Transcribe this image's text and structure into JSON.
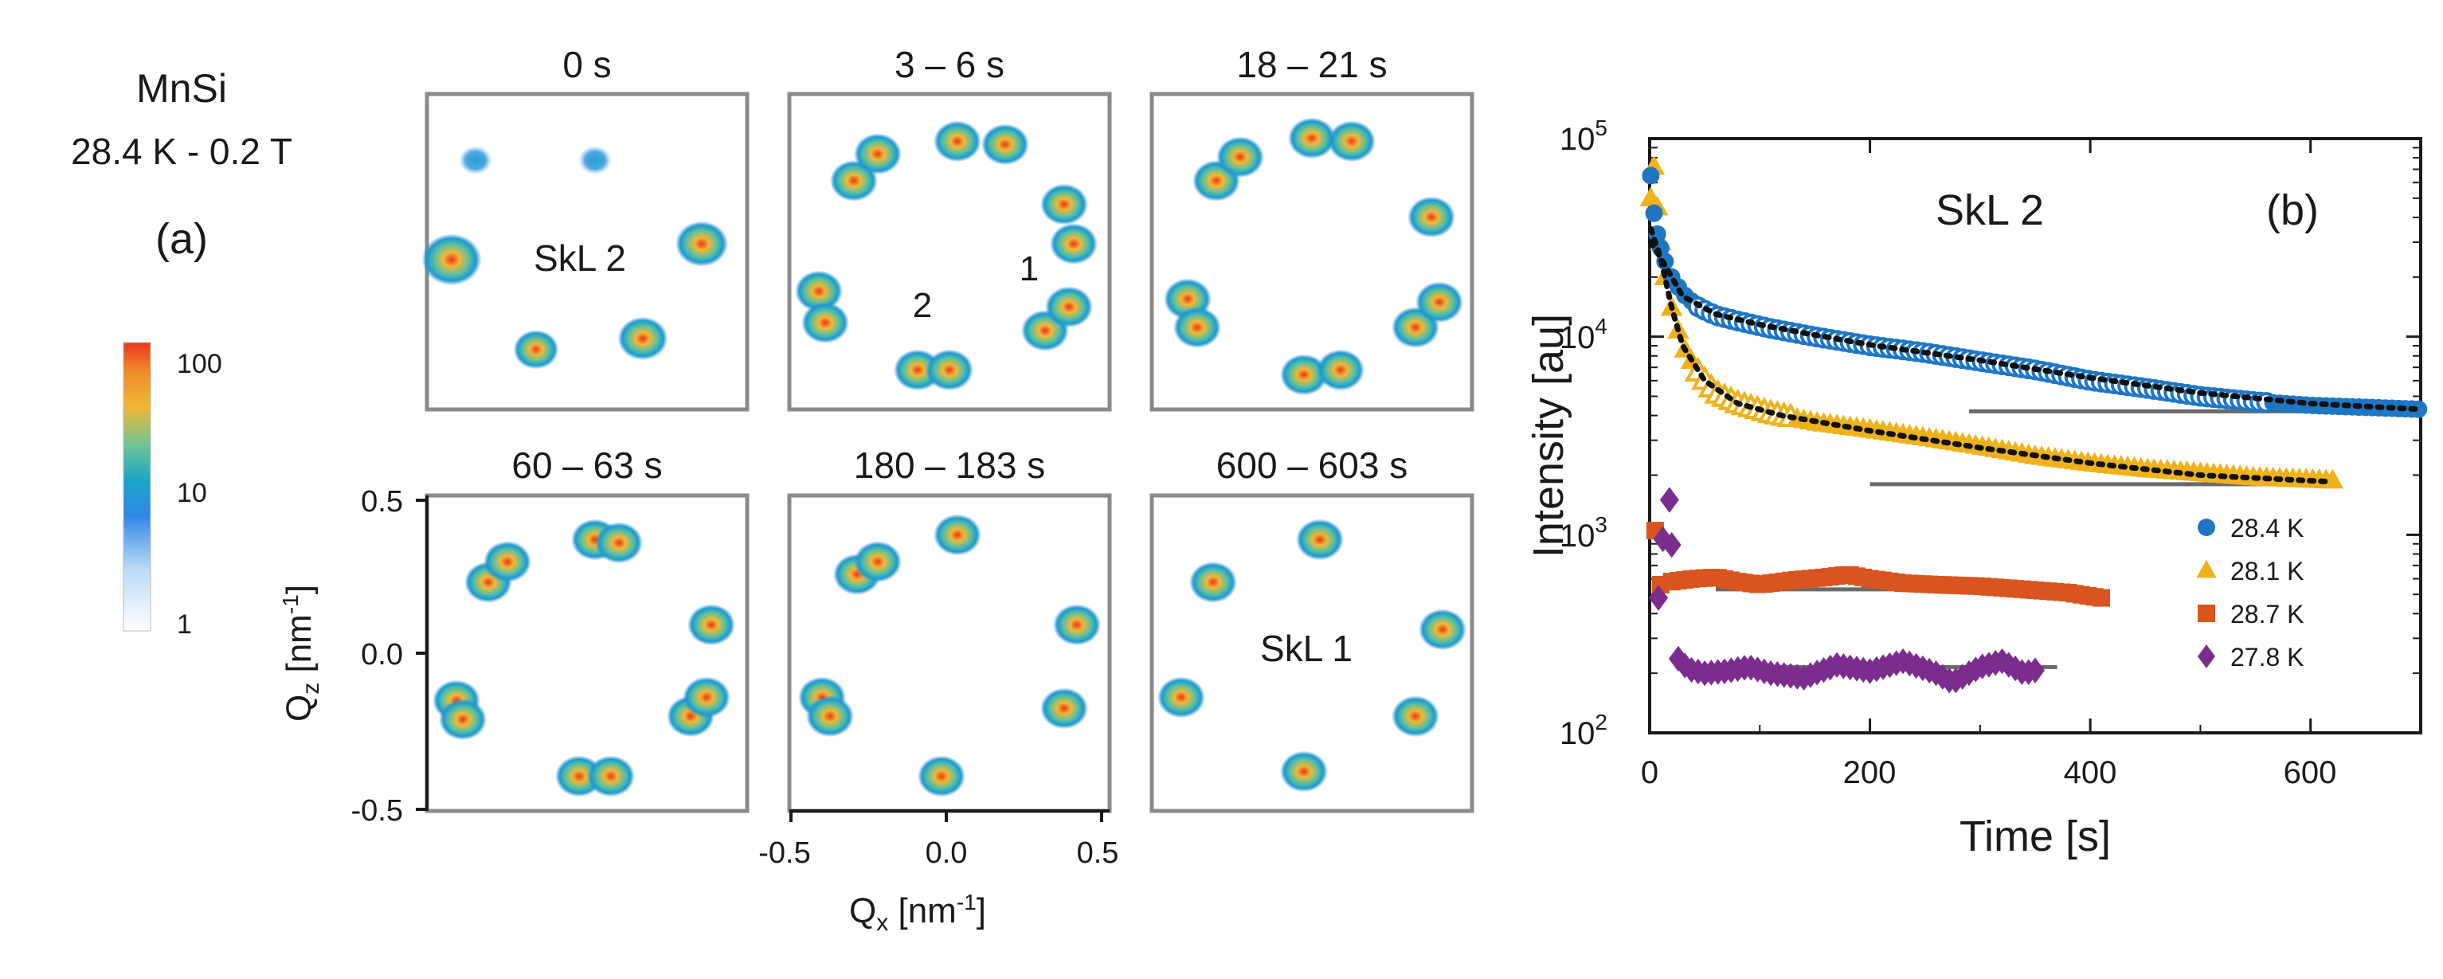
{
  "panel_a": {
    "material": "MnSi",
    "conditions": "28.4 K - 0.2 T",
    "label": "(a)",
    "colorbar": {
      "ticks": [
        "100",
        "10",
        "1"
      ],
      "scale": "log",
      "colors": [
        "#ffffff",
        "#2f86e6",
        "#1aa6c8",
        "#f2b733",
        "#e8371b"
      ]
    },
    "frames": [
      {
        "title": "0 s",
        "annotation": "SkL 2",
        "numbers": []
      },
      {
        "title": "3 – 6 s",
        "annotation": "",
        "numbers": [
          "2",
          "1"
        ]
      },
      {
        "title": "18 – 21 s",
        "annotation": "",
        "numbers": []
      },
      {
        "title": "60 – 63 s",
        "annotation": "",
        "numbers": []
      },
      {
        "title": "180 – 183 s",
        "annotation": "",
        "numbers": []
      },
      {
        "title": "600 – 603 s",
        "annotation": "SkL 1",
        "numbers": []
      }
    ],
    "x_axis": {
      "label_main": "Q",
      "label_sub": "x",
      "label_unit": " [nm",
      "label_sup": "-1",
      "label_end": "]",
      "ticks": [
        "-0.5",
        "0.0",
        "0.5"
      ]
    },
    "y_axis": {
      "label_main": "Q",
      "label_sub": "z",
      "label_unit": " [nm",
      "label_sup": "-1",
      "label_end": "]",
      "ticks": [
        "0.5",
        "0.0",
        "-0.5"
      ]
    }
  },
  "chart_data": {
    "type": "scatter",
    "title": "SkL 2",
    "panel_label": "(b)",
    "xlabel": "Time [s]",
    "ylabel": "Intensity [au]",
    "xlim": [
      0,
      700
    ],
    "ylim": [
      100,
      100000
    ],
    "yscale": "log",
    "x_ticks": [
      "0",
      "200",
      "400",
      "600"
    ],
    "y_ticks": [
      {
        "base": "10",
        "exp": "2"
      },
      {
        "base": "10",
        "exp": "3"
      },
      {
        "base": "10",
        "exp": "4"
      },
      {
        "base": "10",
        "exp": "5"
      }
    ],
    "legend_position": "bottom-right",
    "series": [
      {
        "name": "28.4 K",
        "marker": "circle",
        "color": "#1f77c4",
        "open_marker_start_s": 40,
        "open_marker_end_s": 560,
        "points": [
          [
            1,
            65000
          ],
          [
            4,
            42000
          ],
          [
            7,
            33000
          ],
          [
            10,
            28000
          ],
          [
            14,
            24000
          ],
          [
            20,
            20000
          ],
          [
            30,
            16500
          ],
          [
            45,
            14000
          ],
          [
            60,
            12800
          ],
          [
            80,
            12000
          ],
          [
            110,
            11000
          ],
          [
            150,
            10000
          ],
          [
            200,
            9000
          ],
          [
            250,
            8300
          ],
          [
            300,
            7500
          ],
          [
            350,
            6800
          ],
          [
            400,
            6000
          ],
          [
            450,
            5500
          ],
          [
            500,
            5000
          ],
          [
            550,
            4700
          ],
          [
            600,
            4500
          ],
          [
            650,
            4400
          ],
          [
            700,
            4300
          ]
        ],
        "fit": [
          [
            1,
            30000
          ],
          [
            10,
            25000
          ],
          [
            30,
            16000
          ],
          [
            60,
            13000
          ],
          [
            100,
            11500
          ],
          [
            150,
            10200
          ],
          [
            200,
            9100
          ],
          [
            300,
            7600
          ],
          [
            400,
            6200
          ],
          [
            500,
            5200
          ],
          [
            600,
            4600
          ],
          [
            700,
            4300
          ]
        ],
        "plateau": {
          "value": 4200,
          "x_start": 290,
          "x_end": 700
        }
      },
      {
        "name": "28.1 K",
        "marker": "triangle",
        "color": "#f0b21c",
        "open_marker_start_s": 40,
        "open_marker_end_s": 130,
        "points": [
          [
            1,
            50000
          ],
          [
            4,
            72000
          ],
          [
            7,
            45000
          ],
          [
            10,
            30000
          ],
          [
            14,
            20000
          ],
          [
            20,
            14000
          ],
          [
            30,
            9000
          ],
          [
            45,
            6500
          ],
          [
            60,
            5200
          ],
          [
            80,
            4600
          ],
          [
            110,
            4100
          ],
          [
            150,
            3700
          ],
          [
            200,
            3400
          ],
          [
            250,
            3100
          ],
          [
            300,
            2800
          ],
          [
            350,
            2500
          ],
          [
            400,
            2300
          ],
          [
            450,
            2150
          ],
          [
            500,
            2050
          ],
          [
            550,
            1950
          ],
          [
            600,
            1900
          ],
          [
            620,
            1880
          ]
        ],
        "fit": [
          [
            1,
            35000
          ],
          [
            10,
            25000
          ],
          [
            20,
            14000
          ],
          [
            30,
            9000
          ],
          [
            50,
            6000
          ],
          [
            80,
            4600
          ],
          [
            120,
            4000
          ],
          [
            200,
            3350
          ],
          [
            300,
            2750
          ],
          [
            400,
            2300
          ],
          [
            500,
            2000
          ],
          [
            620,
            1850
          ]
        ],
        "plateau": {
          "value": 1800,
          "x_start": 200,
          "x_end": 620
        }
      },
      {
        "name": "28.7 K",
        "marker": "square",
        "color": "#d9541e",
        "points": [
          [
            5,
            1050
          ],
          [
            10,
            560
          ],
          [
            20,
            580
          ],
          [
            40,
            600
          ],
          [
            60,
            610
          ],
          [
            80,
            580
          ],
          [
            100,
            560
          ],
          [
            130,
            590
          ],
          [
            160,
            610
          ],
          [
            180,
            630
          ],
          [
            200,
            600
          ],
          [
            230,
            570
          ],
          [
            260,
            560
          ],
          [
            300,
            550
          ],
          [
            340,
            530
          ],
          [
            380,
            510
          ],
          [
            410,
            480
          ]
        ],
        "plateau": {
          "value": 530,
          "x_start": 60,
          "x_end": 400
        }
      },
      {
        "name": "27.8 K",
        "marker": "diamond",
        "color": "#7b2d8e",
        "points": [
          [
            8,
            480
          ],
          [
            12,
            950
          ],
          [
            18,
            1500
          ],
          [
            25,
            240
          ],
          [
            35,
            210
          ],
          [
            50,
            200
          ],
          [
            70,
            205
          ],
          [
            90,
            215
          ],
          [
            110,
            200
          ],
          [
            140,
            190
          ],
          [
            170,
            220
          ],
          [
            200,
            205
          ],
          [
            230,
            230
          ],
          [
            250,
            210
          ],
          [
            260,
            200
          ],
          [
            275,
            180
          ],
          [
            300,
            215
          ],
          [
            320,
            230
          ],
          [
            340,
            200
          ],
          [
            355,
            210
          ]
        ],
        "plateau": {
          "value": 215,
          "x_start": 70,
          "x_end": 370
        }
      }
    ]
  }
}
